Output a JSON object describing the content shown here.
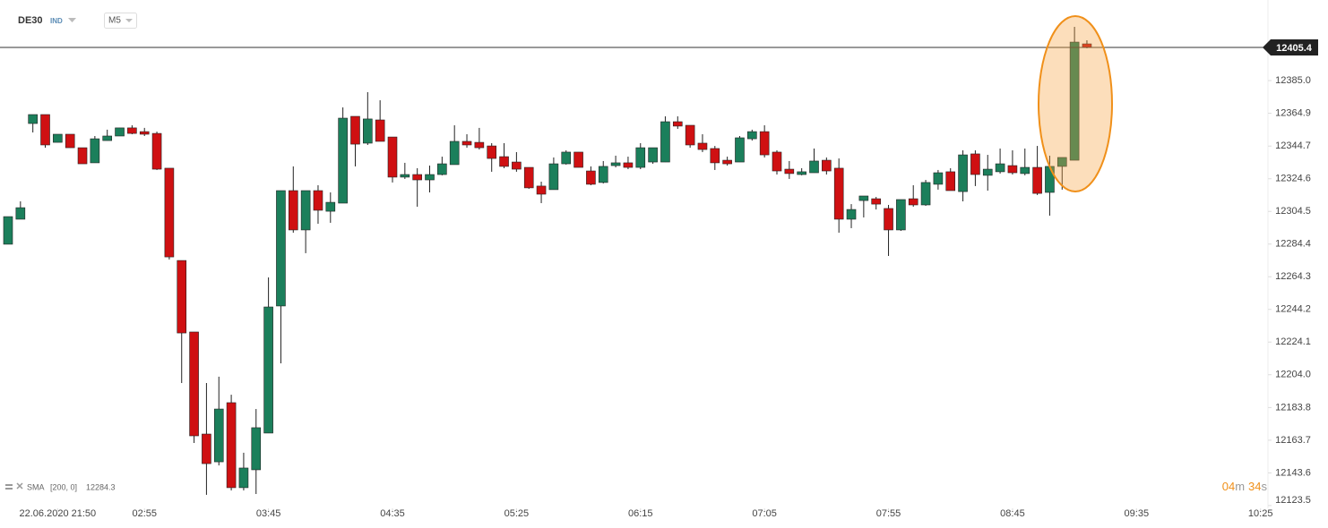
{
  "chart_data": {
    "type": "candlestick",
    "symbol": "DE30",
    "symbol_type": "IND",
    "timeframe": "M5",
    "indicator": {
      "name": "SMA",
      "params": "[200, 0]",
      "value": 12284.3
    },
    "countdown": [
      "04",
      "m",
      "34",
      "s"
    ],
    "last_price": 12405.4,
    "up_color": "#1b7f5b",
    "down_color": "#cf1012",
    "open": [
      12284.3,
      12299.7,
      12358.6,
      12364.1,
      12347.0,
      12352.0,
      12343.7,
      12334.4,
      12348.1,
      12350.9,
      12355.9,
      12353.6,
      12352.5,
      12331.1,
      12274.3,
      12230.3,
      12167.5,
      12150.4,
      12186.8,
      12134.5,
      12145.5,
      12168.1,
      12246.3,
      12317.3,
      12293.1,
      12317.3,
      12304.6,
      12309.6,
      12363.0,
      12346.5,
      12360.8,
      12350.3,
      12325.6,
      12327.2,
      12323.9,
      12327.2,
      12333.3,
      12347.6,
      12347.0,
      12344.8,
      12338.2,
      12334.9,
      12331.6,
      12320.1,
      12317.9,
      12333.8,
      12341.0,
      12329.4,
      12322.3,
      12332.7,
      12334.4,
      12331.6,
      12334.9,
      12334.9,
      12359.7,
      12357.5,
      12346.5,
      12343.2,
      12336.0,
      12334.9,
      12349.2,
      12353.6,
      12341.0,
      12330.5,
      12327.2,
      12328.3,
      12336.0,
      12331.1,
      12299.7,
      12311.2,
      12312.3,
      12306.3,
      12293.1,
      12312.3,
      12308.5,
      12321.2,
      12328.9,
      12316.7,
      12339.9,
      12326.7,
      12328.9,
      12332.7,
      12327.8,
      12331.6,
      12316.2,
      12332.2,
      12336.0,
      12407.6
    ],
    "high": [
      12301.3,
      12310.7,
      12364.1,
      12364.1,
      12352.0,
      12352.0,
      12343.7,
      12350.9,
      12354.8,
      12355.9,
      12357.5,
      12355.9,
      12353.6,
      12331.1,
      12274.3,
      12230.3,
      12198.9,
      12202.8,
      12191.7,
      12156.0,
      12182.9,
      12263.9,
      12317.3,
      12332.2,
      12317.3,
      12320.6,
      12316.2,
      12368.5,
      12363.0,
      12377.9,
      12372.9,
      12350.3,
      12334.4,
      12331.1,
      12332.7,
      12338.2,
      12357.5,
      12352.0,
      12355.9,
      12346.5,
      12346.5,
      12341.0,
      12331.6,
      12322.8,
      12337.7,
      12342.1,
      12341.0,
      12332.2,
      12335.5,
      12338.8,
      12338.2,
      12346.5,
      12343.7,
      12363.0,
      12363.0,
      12357.5,
      12352.0,
      12344.8,
      12338.2,
      12350.9,
      12354.8,
      12357.5,
      12342.1,
      12335.5,
      12331.1,
      12343.2,
      12337.7,
      12337.1,
      12309.0,
      12314.0,
      12313.4,
      12308.5,
      12311.8,
      12320.6,
      12323.9,
      12330.0,
      12331.1,
      12342.1,
      12342.1,
      12339.3,
      12343.2,
      12342.1,
      12343.2,
      12344.8,
      12338.8,
      12337.7,
      12418.1,
      12409.8
    ],
    "low": [
      12284.3,
      12299.7,
      12353.1,
      12343.7,
      12347.0,
      12343.7,
      12333.8,
      12334.4,
      12348.1,
      12350.9,
      12352.0,
      12350.9,
      12330.0,
      12274.9,
      12198.9,
      12162.0,
      12130.1,
      12148.2,
      12132.8,
      12132.8,
      12130.6,
      12168.1,
      12211.0,
      12291.4,
      12278.8,
      12296.9,
      12297.5,
      12309.6,
      12332.2,
      12345.4,
      12347.6,
      12322.3,
      12324.5,
      12307.4,
      12316.2,
      12326.7,
      12333.3,
      12343.7,
      12342.6,
      12328.9,
      12331.1,
      12328.9,
      12318.4,
      12309.6,
      12317.9,
      12333.3,
      12331.6,
      12320.6,
      12321.7,
      12331.6,
      12330.5,
      12330.5,
      12333.8,
      12334.9,
      12355.3,
      12343.7,
      12341.0,
      12330.0,
      12332.7,
      12334.9,
      12348.1,
      12337.7,
      12327.2,
      12324.5,
      12326.7,
      12328.3,
      12327.2,
      12291.4,
      12294.2,
      12300.8,
      12305.7,
      12277.1,
      12292.5,
      12307.4,
      12307.9,
      12317.9,
      12317.3,
      12310.7,
      12320.1,
      12317.3,
      12327.8,
      12327.2,
      12326.7,
      12314.6,
      12301.9,
      12317.9,
      12336.0,
      12404.9
    ],
    "close": [
      12301.3,
      12306.8,
      12364.1,
      12345.4,
      12352.0,
      12343.7,
      12333.8,
      12349.2,
      12350.9,
      12355.9,
      12352.5,
      12352.0,
      12330.5,
      12276.5,
      12229.7,
      12166.4,
      12149.3,
      12182.9,
      12134.5,
      12146.6,
      12171.4,
      12245.7,
      12317.3,
      12293.1,
      12317.3,
      12305.2,
      12310.1,
      12361.9,
      12345.9,
      12361.4,
      12347.6,
      12325.6,
      12327.2,
      12323.9,
      12327.2,
      12333.8,
      12347.6,
      12345.4,
      12343.7,
      12337.1,
      12332.2,
      12330.5,
      12319.0,
      12315.1,
      12333.8,
      12341.0,
      12331.6,
      12321.2,
      12332.2,
      12334.4,
      12331.6,
      12343.7,
      12343.7,
      12359.7,
      12357.0,
      12345.4,
      12342.6,
      12334.4,
      12333.8,
      12349.8,
      12353.6,
      12339.3,
      12329.4,
      12327.8,
      12328.9,
      12335.5,
      12329.4,
      12299.7,
      12305.7,
      12314.0,
      12309.0,
      12293.1,
      12311.8,
      12308.5,
      12322.3,
      12328.3,
      12317.3,
      12339.3,
      12327.2,
      12330.5,
      12333.8,
      12328.3,
      12331.6,
      12315.6,
      12332.2,
      12337.7,
      12408.7,
      12405.4
    ],
    "xlim": [
      -0.65,
      101.6
    ],
    "xticks": [
      {
        "value": 4,
        "label": "22.06.2020  21:50"
      },
      {
        "value": 11,
        "label": "02:55"
      },
      {
        "value": 21,
        "label": "03:45"
      },
      {
        "value": 31,
        "label": "04:35"
      },
      {
        "value": 41,
        "label": "05:25"
      },
      {
        "value": 51,
        "label": "06:15"
      },
      {
        "value": 61,
        "label": "07:05"
      },
      {
        "value": 71,
        "label": "07:55"
      },
      {
        "value": 81,
        "label": "08:45"
      },
      {
        "value": 91,
        "label": "09:35"
      },
      {
        "value": 101,
        "label": "10:25"
      }
    ],
    "ylim": [
      12121.8,
      12434.6
    ],
    "yticks": [
      12123.5,
      12143.6,
      12163.7,
      12183.8,
      {
        "value": 12204.0,
        "label": "12204.0"
      },
      12224.1,
      12244.2,
      12264.3,
      12284.4,
      12304.5,
      12324.6,
      12344.7,
      12364.9,
      {
        "value": 12385.0,
        "label": "12385.0"
      }
    ]
  }
}
